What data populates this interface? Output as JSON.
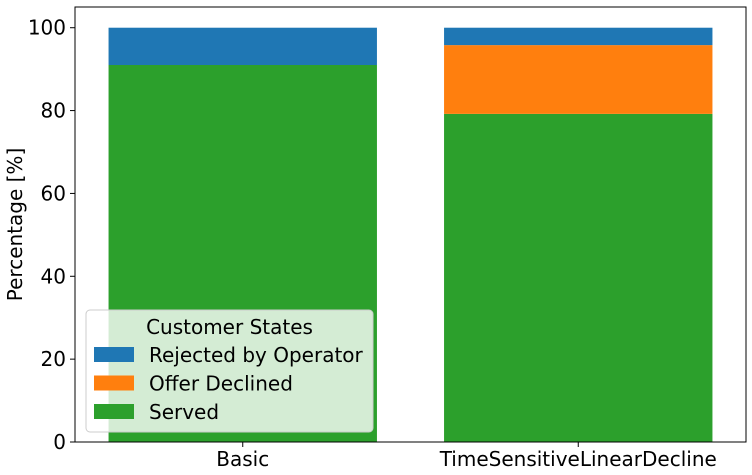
{
  "chart_data": {
    "type": "bar",
    "stacked": true,
    "categories": [
      "Basic",
      "TimeSensitiveLinearDecline"
    ],
    "series": [
      {
        "name": "Served",
        "color": "#2ca02c",
        "values": [
          91,
          79.2
        ]
      },
      {
        "name": "Offer Declined",
        "color": "#ff7f0e",
        "values": [
          0,
          16.6
        ]
      },
      {
        "name": "Rejected by Operator",
        "color": "#1f77b4",
        "values": [
          9,
          4.2
        ]
      }
    ],
    "ylabel": "Percentage [%]",
    "ylim": [
      0,
      105
    ],
    "yticks": [
      0,
      20,
      40,
      60,
      80,
      100
    ],
    "grid": false,
    "legend": {
      "title": "Customer States",
      "placement": "lower-left",
      "order": [
        "Rejected by Operator",
        "Offer Declined",
        "Served"
      ]
    }
  }
}
